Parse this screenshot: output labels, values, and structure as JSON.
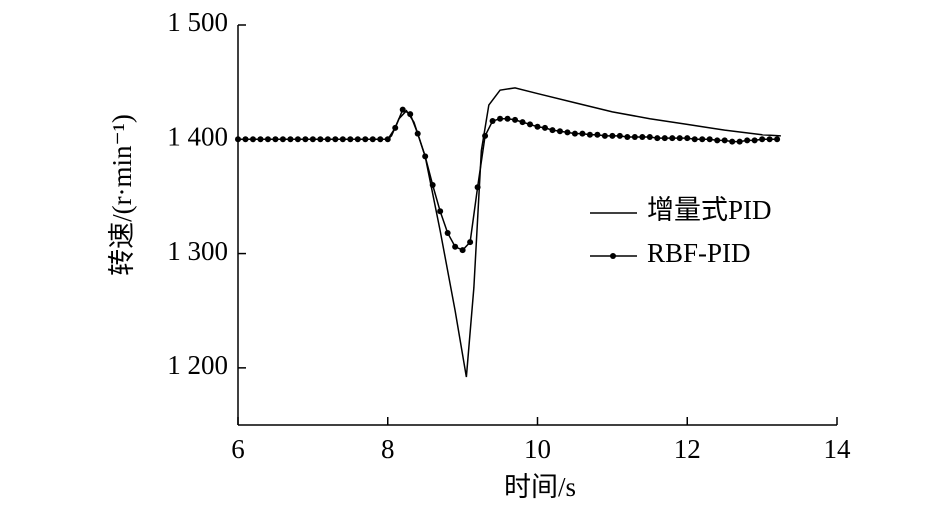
{
  "chart_data": {
    "type": "line",
    "x_label": "时间/s",
    "y_label": "转速/(r·min⁻¹)",
    "xlim": [
      6,
      14
    ],
    "xticks": [
      6,
      8,
      10,
      12,
      14
    ],
    "ylim": [
      1150,
      1500
    ],
    "yticks": [
      {
        "value": 1200,
        "label": "1 200"
      },
      {
        "value": 1300,
        "label": "1 300"
      },
      {
        "value": 1400,
        "label": "1 400"
      },
      {
        "value": 1500,
        "label": "1 500"
      }
    ],
    "grid": false,
    "legend": "right",
    "series": [
      {
        "name": "增量式PID",
        "color": "#000000",
        "marker": "none",
        "x": [
          6,
          8,
          8.05,
          8.15,
          8.25,
          8.35,
          8.5,
          8.7,
          8.9,
          9.05,
          9.15,
          9.25,
          9.35,
          9.5,
          9.7,
          10,
          10.5,
          11,
          11.5,
          12,
          12.5,
          13,
          13.25
        ],
        "values": [
          1400,
          1400,
          1403,
          1418,
          1425,
          1415,
          1385,
          1320,
          1250,
          1192,
          1270,
          1390,
          1430,
          1443,
          1445,
          1440,
          1432,
          1424,
          1418,
          1413,
          1408,
          1404,
          1403
        ]
      },
      {
        "name": "RBF-PID",
        "color": "#000000",
        "marker": "circle",
        "x": [
          6.0,
          6.1,
          6.2,
          6.3,
          6.4,
          6.5,
          6.6,
          6.7,
          6.8,
          6.9,
          7.0,
          7.1,
          7.2,
          7.3,
          7.4,
          7.5,
          7.6,
          7.7,
          7.8,
          7.9,
          8.0,
          8.1,
          8.2,
          8.3,
          8.4,
          8.5,
          8.6,
          8.7,
          8.8,
          8.9,
          9.0,
          9.1,
          9.2,
          9.3,
          9.4,
          9.5,
          9.6,
          9.7,
          9.8,
          9.9,
          10.0,
          10.1,
          10.2,
          10.3,
          10.4,
          10.5,
          10.6,
          10.7,
          10.8,
          10.9,
          11.0,
          11.1,
          11.2,
          11.3,
          11.4,
          11.5,
          11.6,
          11.7,
          11.8,
          11.9,
          12.0,
          12.1,
          12.2,
          12.3,
          12.4,
          12.5,
          12.6,
          12.7,
          12.8,
          12.9,
          13.0,
          13.1,
          13.2
        ],
        "values": [
          1400,
          1400,
          1400,
          1400,
          1400,
          1400,
          1400,
          1400,
          1400,
          1400,
          1400,
          1400,
          1400,
          1400,
          1400,
          1400,
          1400,
          1400,
          1400,
          1400,
          1400,
          1410,
          1426,
          1422,
          1405,
          1385,
          1360,
          1337,
          1318,
          1306,
          1303,
          1310,
          1358,
          1403,
          1416,
          1418,
          1418,
          1417,
          1415,
          1413,
          1411,
          1410,
          1408,
          1407,
          1406,
          1405,
          1405,
          1404,
          1404,
          1403,
          1403,
          1403,
          1402,
          1402,
          1402,
          1402,
          1401,
          1401,
          1401,
          1401,
          1401,
          1400,
          1400,
          1400,
          1399,
          1399,
          1398,
          1398,
          1399,
          1399,
          1400,
          1400,
          1400
        ]
      }
    ]
  }
}
